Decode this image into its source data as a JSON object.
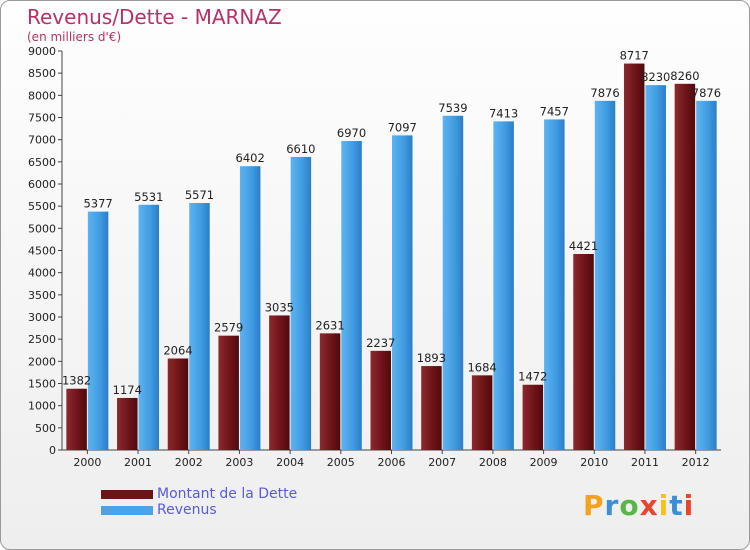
{
  "title": "Revenus/Dette - MARNAZ",
  "subtitle": "(en milliers d'€)",
  "logo": {
    "letters": [
      "P",
      "r",
      "o",
      "x",
      "i",
      "t",
      "i"
    ],
    "colors": [
      "#f4a21e",
      "#3b8ed8",
      "#58b646",
      "#e8452e",
      "#f4c21e",
      "#3b8ed8",
      "#e8452e"
    ]
  },
  "legend": [
    {
      "label": "Montant de la Dette",
      "color": "#7a1a1e"
    },
    {
      "label": "Revenus",
      "color": "#4aa3e8"
    }
  ],
  "chart_data": {
    "type": "bar",
    "categories": [
      "2000",
      "2001",
      "2002",
      "2003",
      "2004",
      "2005",
      "2006",
      "2007",
      "2008",
      "2009",
      "2010",
      "2011",
      "2012"
    ],
    "series": [
      {
        "name": "Montant de la Dette",
        "color": "#7a1a1e",
        "values": [
          1382,
          1174,
          2064,
          2579,
          3035,
          2631,
          2237,
          1893,
          1684,
          1472,
          4421,
          8717,
          8260
        ],
        "labels": [
          "1382",
          "1174",
          "2064",
          "2579",
          "3035",
          "2631",
          "2237",
          "1893",
          "1684",
          "1472",
          "4421",
          "8717",
          "8260"
        ]
      },
      {
        "name": "Revenus",
        "color": "#4aa3e8",
        "values": [
          5377,
          5531,
          5571,
          6402,
          6610,
          6970,
          7097,
          7539,
          7413,
          7457,
          7876,
          8230,
          7876
        ],
        "labels": [
          "5377",
          "5531",
          "5571",
          "6402",
          "6610",
          "6970",
          "7097",
          "7539",
          "7413",
          "7457",
          "7876",
          "8230",
          "7876"
        ]
      }
    ],
    "ylim": [
      0,
      9000
    ],
    "yticks": [
      0,
      500,
      1000,
      1500,
      2000,
      2500,
      3000,
      3500,
      4000,
      4500,
      5000,
      5500,
      6000,
      6500,
      7000,
      7500,
      8000,
      8500,
      9000
    ],
    "grid": false,
    "legend_position": "bottom-left"
  }
}
